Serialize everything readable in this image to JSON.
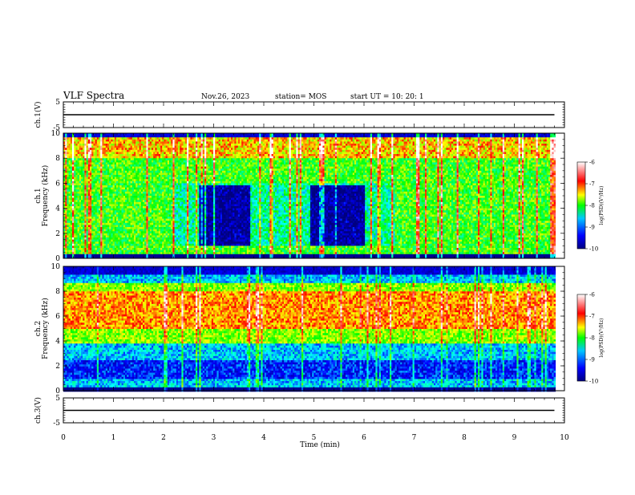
{
  "header": {
    "title": "VLF Spectra",
    "date": "Nov.26, 2023",
    "station": "station= MOS",
    "start": "start UT =  10: 20: 1"
  },
  "chart_data": [
    {
      "type": "line",
      "name": "ch1-waveform",
      "ylabel": "ch.1(V)",
      "ylim": [
        -5,
        5
      ],
      "yticks": [
        "5",
        "-5"
      ],
      "x": [
        0,
        9.8
      ],
      "values": [
        0,
        0
      ]
    },
    {
      "type": "heatmap",
      "name": "ch1-spectrogram",
      "ylabel": "ch.1\nFrequency (kHz)",
      "ylim": [
        0,
        10
      ],
      "yticks": [
        "0",
        "2",
        "4",
        "6",
        "8",
        "10"
      ],
      "xlim": [
        0,
        9.8
      ],
      "colorbar": {
        "label": "log(PSD)(V²/Hz)",
        "range": [
          -10,
          -6
        ],
        "ticks": [
          "-6",
          "-7",
          "-8",
          "-9",
          "-10"
        ]
      },
      "description_levels": {
        "high_band_khz": [
          8,
          9.6
        ],
        "quiet_intervals_min": [
          [
            2.7,
            3.7
          ],
          [
            4.9,
            6.0
          ]
        ]
      }
    },
    {
      "type": "heatmap",
      "name": "ch2-spectrogram",
      "ylabel": "ch.2\nFrequency (kHz)",
      "ylim": [
        0,
        10
      ],
      "yticks": [
        "0",
        "2",
        "4",
        "6",
        "8",
        "10"
      ],
      "xlim": [
        0,
        9.8
      ],
      "colorbar": {
        "label": "log(PSD)(V²/Hz)",
        "range": [
          -10,
          -6
        ],
        "ticks": [
          "-6",
          "-7",
          "-8",
          "-9",
          "-10"
        ]
      },
      "description_levels": {
        "peak_band_khz": [
          5,
          8
        ]
      }
    },
    {
      "type": "line",
      "name": "ch3-waveform",
      "ylabel": "ch.3(V)",
      "ylim": [
        -5,
        5
      ],
      "yticks": [
        "5",
        "-5"
      ],
      "x": [
        0,
        9.8
      ],
      "values": [
        0,
        0
      ]
    }
  ],
  "xaxis": {
    "label": "Time  (min)",
    "ticks": [
      "0",
      "1",
      "2",
      "3",
      "4",
      "5",
      "6",
      "7",
      "8",
      "9",
      "10"
    ],
    "range": [
      0,
      10
    ]
  },
  "colors": {
    "cmap": [
      "#000080",
      "#0000ff",
      "#00ffff",
      "#00ff00",
      "#ffff00",
      "#ff0000",
      "#ffffff"
    ]
  }
}
